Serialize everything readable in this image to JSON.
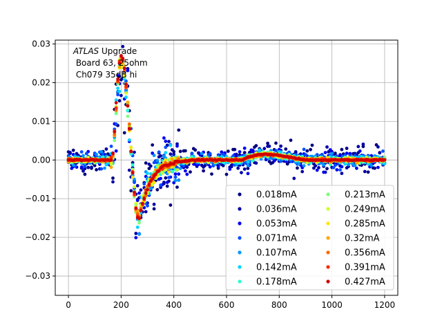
{
  "chart_data": {
    "type": "scatter",
    "title": "",
    "xlabel": "",
    "ylabel": "",
    "xlim": [
      -50,
      1250
    ],
    "ylim": [
      -0.035,
      0.031
    ],
    "grid": true,
    "legend_placement": "lower-right",
    "legend_columns": 2,
    "x_ticks": [
      0,
      200,
      400,
      600,
      800,
      1000,
      1200
    ],
    "x_tick_labels": [
      "0",
      "200",
      "400",
      "600",
      "800",
      "1000",
      "1200"
    ],
    "y_ticks": [
      -0.03,
      -0.02,
      -0.01,
      0.0,
      0.01,
      0.02,
      0.03
    ],
    "y_tick_labels": [
      "−0.03",
      "−0.02",
      "−0.01",
      "0.00",
      "0.01",
      "0.02",
      "0.03"
    ],
    "annotation": {
      "italic": "ATLAS",
      "line1_rest": " Upgrade",
      "line2": " Board 63, 25ohm",
      "line3": " Ch079 35dB hi"
    },
    "x_range": [
      0,
      1200
    ],
    "sample_step": 6.25,
    "shape_model": {
      "description": "Each series is the same bipolar pulse scaled slightly plus noise; noise amplitude decreases as current increases.",
      "baseline": 0.0,
      "peak": {
        "x": 200,
        "y": 0.027
      },
      "trough": {
        "x": 268,
        "y": -0.0155
      },
      "rise_start_x": 165,
      "recovery_end_x": 460,
      "reflection": {
        "x_start": 660,
        "x_peak": 720,
        "x_end": 900,
        "y_peak": 0.0025
      }
    },
    "series": [
      {
        "name": "0.018mA",
        "color": "#00007f",
        "noise": 0.0018
      },
      {
        "name": "0.036mA",
        "color": "#0000a8",
        "noise": 0.0015
      },
      {
        "name": "0.053mA",
        "color": "#0000f1",
        "noise": 0.0012
      },
      {
        "name": "0.071mA",
        "color": "#004dff",
        "noise": 0.0009
      },
      {
        "name": "0.107mA",
        "color": "#0095ff",
        "noise": 0.0007
      },
      {
        "name": "0.142mA",
        "color": "#00d5ff",
        "noise": 0.0005
      },
      {
        "name": "0.178mA",
        "color": "#29ffce",
        "noise": 0.0004
      },
      {
        "name": "0.213mA",
        "color": "#7dff7a",
        "noise": 0.0003
      },
      {
        "name": "0.249mA",
        "color": "#ceff29",
        "noise": 0.0003
      },
      {
        "name": "0.285mA",
        "color": "#ffe600",
        "noise": 0.00025
      },
      {
        "name": "0.32mA",
        "color": "#ffa700",
        "noise": 0.0002
      },
      {
        "name": "0.356mA",
        "color": "#ff6800",
        "noise": 0.00015
      },
      {
        "name": "0.391mA",
        "color": "#ff2900",
        "noise": 0.0001
      },
      {
        "name": "0.427mA",
        "color": "#d00000",
        "noise": 8e-05
      }
    ]
  }
}
